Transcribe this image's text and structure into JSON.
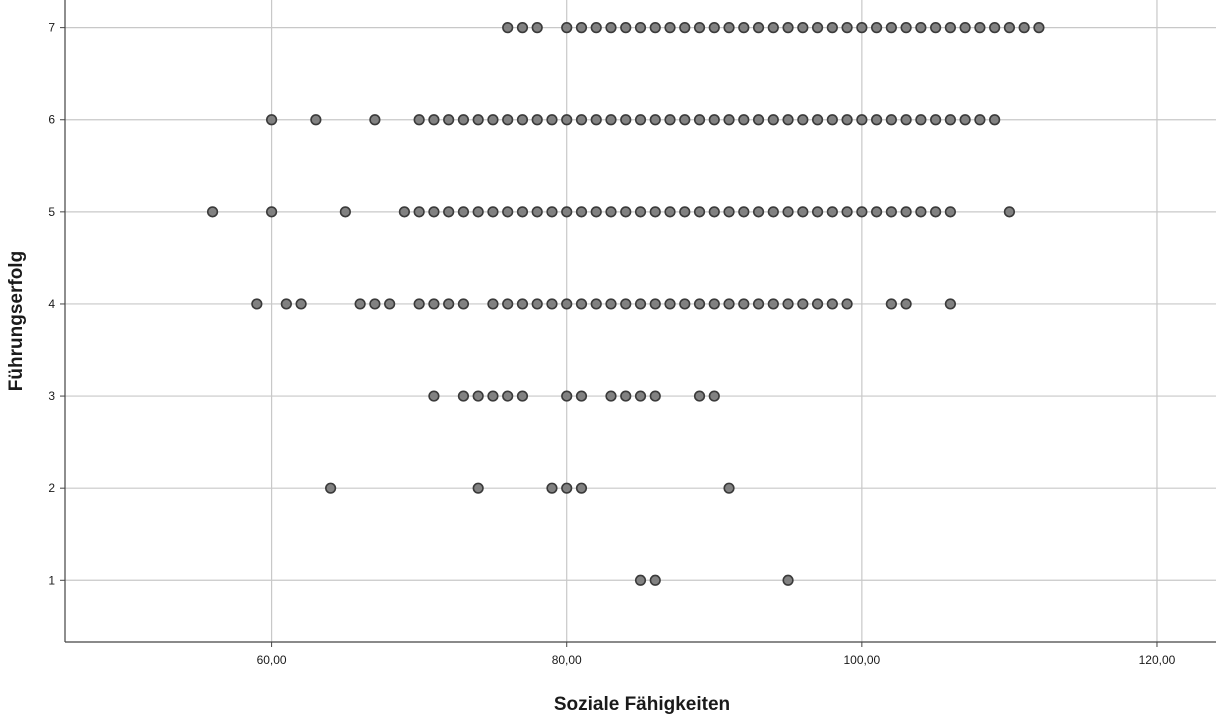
{
  "chart_data": {
    "type": "scatter",
    "xlabel": "Soziale Fähigkeiten",
    "ylabel": "Führungserfolg",
    "xlim": [
      46,
      124
    ],
    "ylim": [
      0.33,
      7.3
    ],
    "x_ticks": [
      60,
      80,
      100,
      120
    ],
    "x_tick_labels": [
      "60,00",
      "80,00",
      "100,00",
      "120,00"
    ],
    "y_ticks": [
      1,
      2,
      3,
      4,
      5,
      6,
      7
    ],
    "y_tick_labels": [
      "1",
      "2",
      "3",
      "4",
      "5",
      "6",
      "7"
    ],
    "grid": true,
    "series": [
      {
        "points": [
          {
            "y": 7,
            "x": [
              76,
              77,
              78,
              80,
              81,
              82,
              83,
              84,
              85,
              86,
              87,
              88,
              89,
              90,
              91,
              92,
              93,
              94,
              95,
              96,
              97,
              98,
              99,
              100,
              101,
              102,
              103,
              104,
              105,
              106,
              107,
              108,
              109,
              110,
              111,
              112
            ]
          },
          {
            "y": 6,
            "x": [
              60,
              63,
              67,
              70,
              71,
              72,
              73,
              74,
              75,
              76,
              77,
              78,
              79,
              80,
              81,
              82,
              83,
              84,
              85,
              86,
              87,
              88,
              89,
              90,
              91,
              92,
              93,
              94,
              95,
              96,
              97,
              98,
              99,
              100,
              101,
              102,
              103,
              104,
              105,
              106,
              107,
              108,
              109
            ]
          },
          {
            "y": 5,
            "x": [
              56,
              60,
              65,
              69,
              70,
              71,
              72,
              73,
              74,
              75,
              76,
              77,
              78,
              79,
              80,
              81,
              82,
              83,
              84,
              85,
              86,
              87,
              88,
              89,
              90,
              91,
              92,
              93,
              94,
              95,
              96,
              97,
              98,
              99,
              100,
              101,
              102,
              103,
              104,
              105,
              106,
              110
            ]
          },
          {
            "y": 4,
            "x": [
              59,
              61,
              62,
              66,
              67,
              68,
              70,
              71,
              72,
              73,
              75,
              76,
              77,
              78,
              79,
              80,
              81,
              82,
              83,
              84,
              85,
              86,
              87,
              88,
              89,
              90,
              91,
              92,
              93,
              94,
              95,
              96,
              97,
              98,
              99,
              102,
              103,
              106
            ]
          },
          {
            "y": 3,
            "x": [
              71,
              73,
              74,
              75,
              76,
              77,
              80,
              81,
              83,
              84,
              85,
              86,
              89,
              90
            ]
          },
          {
            "y": 2,
            "x": [
              64,
              74,
              79,
              80,
              81,
              91
            ]
          },
          {
            "y": 1,
            "x": [
              85,
              86,
              95
            ]
          }
        ]
      }
    ]
  }
}
